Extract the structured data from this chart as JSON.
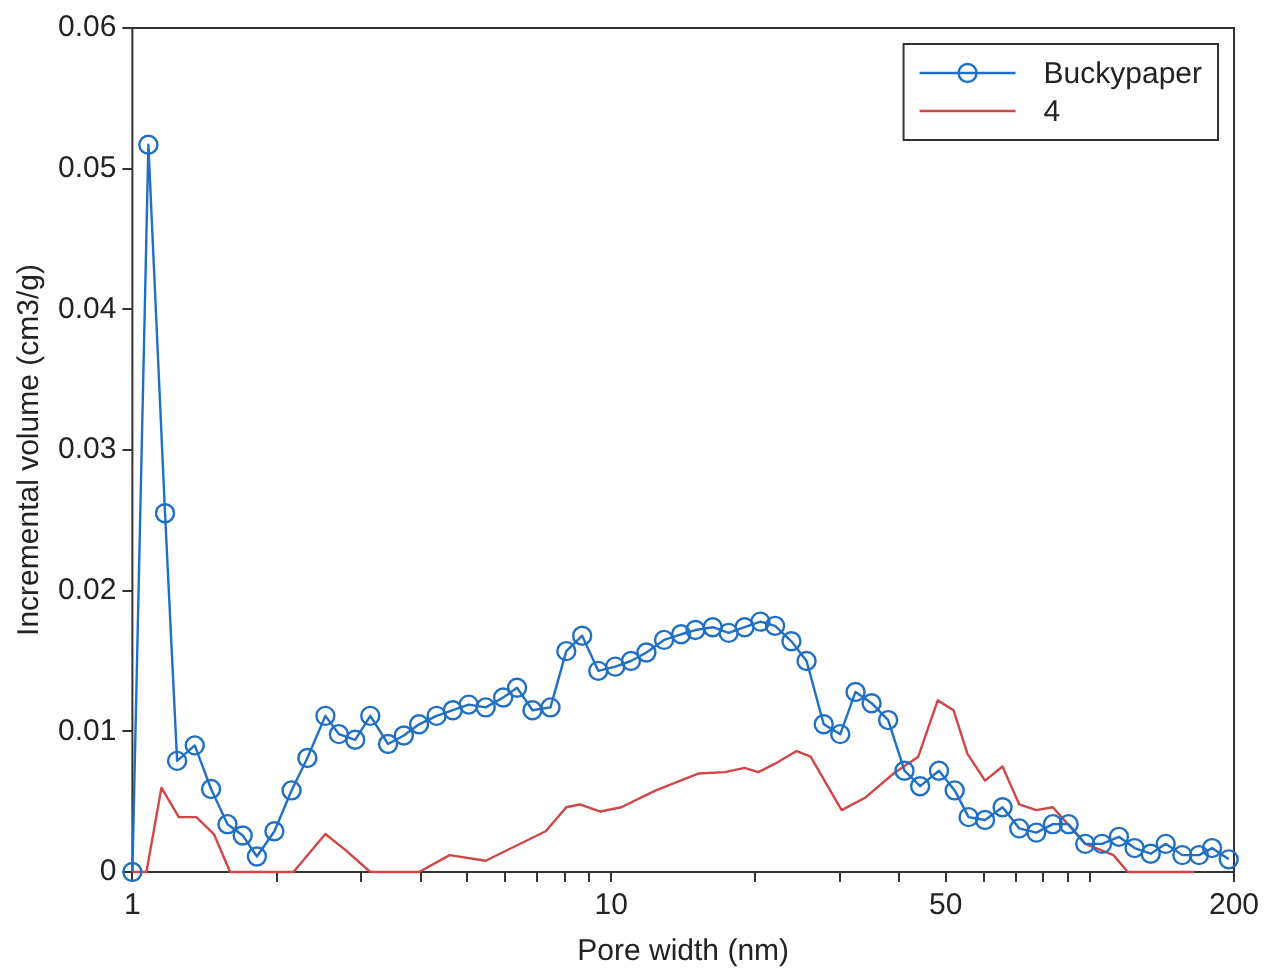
{
  "chart_data": {
    "type": "line",
    "xlabel": "Pore width (nm)",
    "ylabel": "Incremental volume (cm3/g)",
    "log": "x",
    "xlim": [
      1,
      200
    ],
    "xticks": [
      1,
      {
        "value": 2,
        "label": null
      },
      {
        "value": 3,
        "label": null
      },
      {
        "value": 4,
        "label": null
      },
      {
        "value": 5,
        "label": null
      },
      {
        "value": 6,
        "label": null
      },
      {
        "value": 7,
        "label": null
      },
      {
        "value": 8,
        "label": null
      },
      {
        "value": 9,
        "label": null
      },
      10,
      {
        "value": 20,
        "label": null
      },
      {
        "value": 30,
        "label": null
      },
      {
        "value": 40,
        "label": null
      },
      50,
      {
        "value": 60,
        "label": null
      },
      {
        "value": 70,
        "label": null
      },
      {
        "value": 80,
        "label": null
      },
      {
        "value": 90,
        "label": null
      },
      {
        "value": 100,
        "label": null
      },
      200
    ],
    "ylim": [
      0,
      0.06
    ],
    "yticks": [
      0,
      0.01,
      0.02,
      0.03,
      0.04,
      0.05,
      0.06
    ],
    "grid": false,
    "legend": "top right",
    "series": [
      {
        "name": "Buckypaper",
        "color": "#1f6fc5",
        "marker": "circle",
        "x": [
          1.0,
          1.08,
          1.17,
          1.24,
          1.35,
          1.46,
          1.58,
          1.7,
          1.82,
          1.98,
          2.15,
          2.32,
          2.53,
          2.7,
          2.92,
          3.14,
          3.42,
          3.69,
          3.97,
          4.32,
          4.67,
          5.04,
          5.47,
          5.95,
          6.36,
          6.85,
          7.47,
          8.06,
          8.7,
          9.4,
          10.2,
          11.0,
          11.85,
          12.9,
          14.0,
          15.0,
          16.3,
          17.6,
          19.0,
          20.5,
          22.0,
          23.8,
          25.6,
          27.8,
          30.1,
          32.4,
          35.0,
          37.9,
          41.0,
          44.2,
          48.4,
          52.2,
          55.8,
          60.4,
          65.7,
          71.2,
          77.3,
          83.7,
          90.3,
          97.8,
          106,
          115,
          124,
          134,
          144,
          156,
          169,
          180,
          195
        ],
        "values": [
          0,
          0.0517,
          0.0255,
          0.0079,
          0.009,
          0.0059,
          0.0034,
          0.0026,
          0.0011,
          0.0029,
          0.0058,
          0.0081,
          0.0111,
          0.0098,
          0.0094,
          0.0111,
          0.0091,
          0.0097,
          0.0105,
          0.0111,
          0.0115,
          0.0119,
          0.0117,
          0.0124,
          0.0131,
          0.0115,
          0.0117,
          0.0157,
          0.0168,
          0.0143,
          0.0146,
          0.015,
          0.0156,
          0.0165,
          0.0169,
          0.0172,
          0.0174,
          0.017,
          0.0174,
          0.0178,
          0.0175,
          0.0164,
          0.015,
          0.0105,
          0.0098,
          0.0128,
          0.012,
          0.0108,
          0.0072,
          0.0061,
          0.0072,
          0.0058,
          0.0039,
          0.0037,
          0.0046,
          0.0031,
          0.0028,
          0.0034,
          0.0034,
          0.002,
          0.002,
          0.0025,
          0.0017,
          0.0013,
          0.002,
          0.0012,
          0.0012,
          0.0017,
          0.0009
        ]
      },
      {
        "name": "4",
        "color": "#d04545",
        "marker": "none",
        "x": [
          1.0,
          1.07,
          1.15,
          1.25,
          1.36,
          1.48,
          1.6,
          2.17,
          2.53,
          2.8,
          3.14,
          3.97,
          4.6,
          5.47,
          7.3,
          8.06,
          8.6,
          9.5,
          10.5,
          12.4,
          15.2,
          17.3,
          19.0,
          20.3,
          22.0,
          24.4,
          26.1,
          30.3,
          34.0,
          38.9,
          43.8,
          48.1,
          51.9,
          55.5,
          60.4,
          65.7,
          71.2,
          77.3,
          83.7,
          97.8,
          112,
          120,
          165
        ],
        "values": [
          0,
          0,
          0.006,
          0.0039,
          0.0039,
          0.0027,
          0,
          0,
          0.0027,
          0.0015,
          0,
          0,
          0.0012,
          0.0008,
          0.0029,
          0.0046,
          0.0048,
          0.0043,
          0.0046,
          0.0058,
          0.007,
          0.0071,
          0.0074,
          0.0071,
          0.0077,
          0.0086,
          0.0082,
          0.0044,
          0.0053,
          0.007,
          0.0082,
          0.0122,
          0.0115,
          0.0084,
          0.0065,
          0.0075,
          0.0048,
          0.0044,
          0.0046,
          0.002,
          0.0012,
          0,
          0
        ]
      }
    ]
  }
}
